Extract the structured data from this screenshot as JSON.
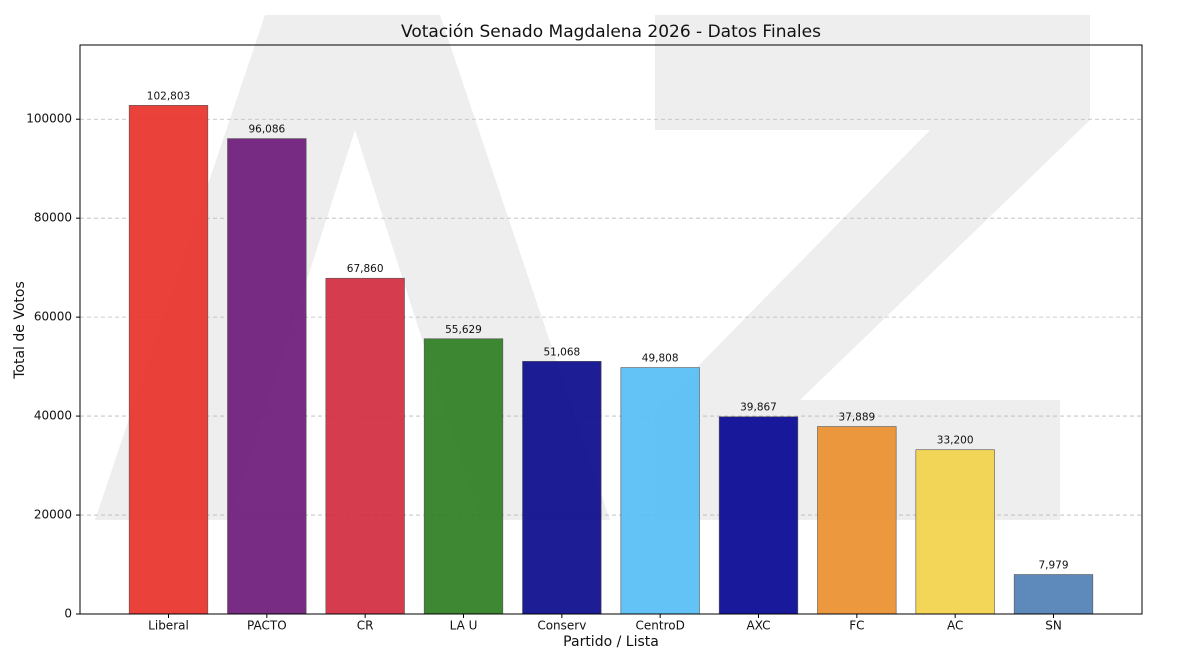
{
  "chart_data": {
    "type": "bar",
    "title": "Votación Senado Magdalena 2026 - Datos Finales",
    "x_label": "Partido / Lista",
    "y_label": "Total de Votos",
    "categories": [
      "Liberal",
      "PACTO",
      "CR",
      "LA U",
      "Conserv",
      "CentroD",
      "AXC",
      "FC",
      "AC",
      "SN"
    ],
    "values": [
      102803,
      96086,
      67860,
      55629,
      51068,
      49808,
      39867,
      37889,
      33200,
      7979
    ],
    "value_labels": [
      "102,803",
      "96,086",
      "67,860",
      "55,629",
      "51,068",
      "49,808",
      "39,867",
      "37,889",
      "33,200",
      "7,979"
    ],
    "colors": [
      "#e8312a",
      "#6d1a7a",
      "#d12d3f",
      "#2e7d22",
      "#0a0a8c",
      "#56bdf5",
      "#050592",
      "#ea8f2f",
      "#f2d34a",
      "#4f7fb5"
    ],
    "ylim": [
      0,
      115000
    ],
    "yticks": [
      0,
      20000,
      40000,
      60000,
      80000,
      100000
    ],
    "grid": true
  }
}
